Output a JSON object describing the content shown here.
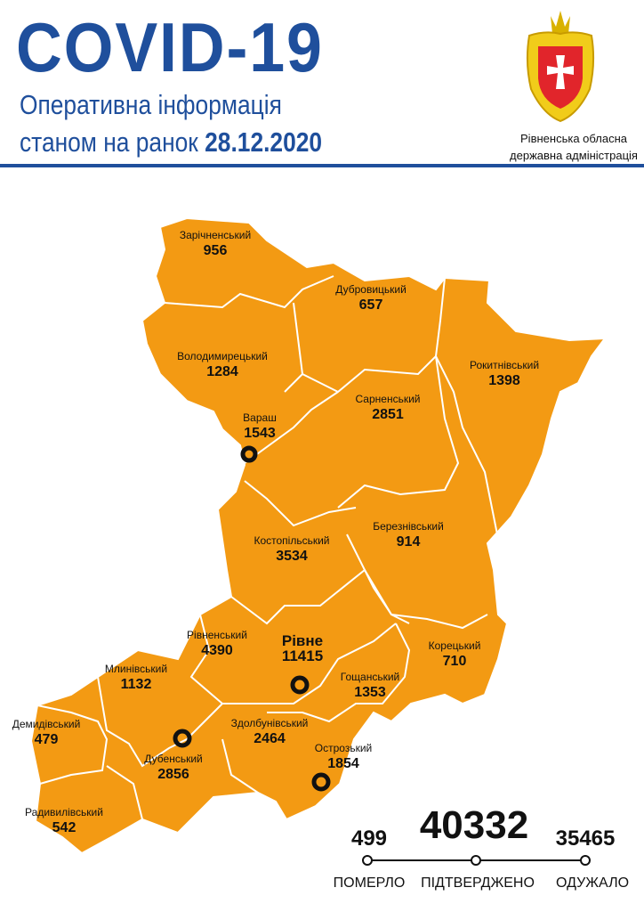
{
  "header": {
    "title": "COVID-19",
    "subtitle_line1": "Оперативна інформація",
    "subtitle_line2_prefix": "станом на ранок",
    "date": "28.12.2020",
    "organization_line1": "Рівненська обласна",
    "organization_line2": "державна адміністрація",
    "crest_icon": "rivne-oblast-coat-of-arms"
  },
  "colors": {
    "title_blue": "#1f4f9c",
    "region_fill": "#f39a13",
    "borders": "#ffffff",
    "markers": "#111111"
  },
  "regions": [
    {
      "name": "Зарічненський",
      "count": "956"
    },
    {
      "name": "Дубровицький",
      "count": "657"
    },
    {
      "name": "Володимирецький",
      "count": "1284"
    },
    {
      "name": "Рокитнівський",
      "count": "1398"
    },
    {
      "name": "Сарненський",
      "count": "2851"
    },
    {
      "name": "Вараш",
      "count": "1543"
    },
    {
      "name": "Березнівський",
      "count": "914"
    },
    {
      "name": "Костопільський",
      "count": "3534"
    },
    {
      "name": "Рівненський",
      "count": "4390"
    },
    {
      "name": "Рівне",
      "count": "11415"
    },
    {
      "name": "Корецький",
      "count": "710"
    },
    {
      "name": "Млинівський",
      "count": "1132"
    },
    {
      "name": "Гощанський",
      "count": "1353"
    },
    {
      "name": "Демидівський",
      "count": "479"
    },
    {
      "name": "Здолбунівський",
      "count": "2464"
    },
    {
      "name": "Острозький",
      "count": "1854"
    },
    {
      "name": "Дубенський",
      "count": "2856"
    },
    {
      "name": "Радивилівський",
      "count": "542"
    }
  ],
  "city_marker_icon": "ring-marker",
  "totals": {
    "deaths": {
      "value": "499",
      "label": "ПОМЕРЛО"
    },
    "confirmed": {
      "value": "40332",
      "label": "ПІДТВЕРДЖЕНО"
    },
    "recovered": {
      "value": "35465",
      "label": "ОДУЖАЛО"
    }
  }
}
